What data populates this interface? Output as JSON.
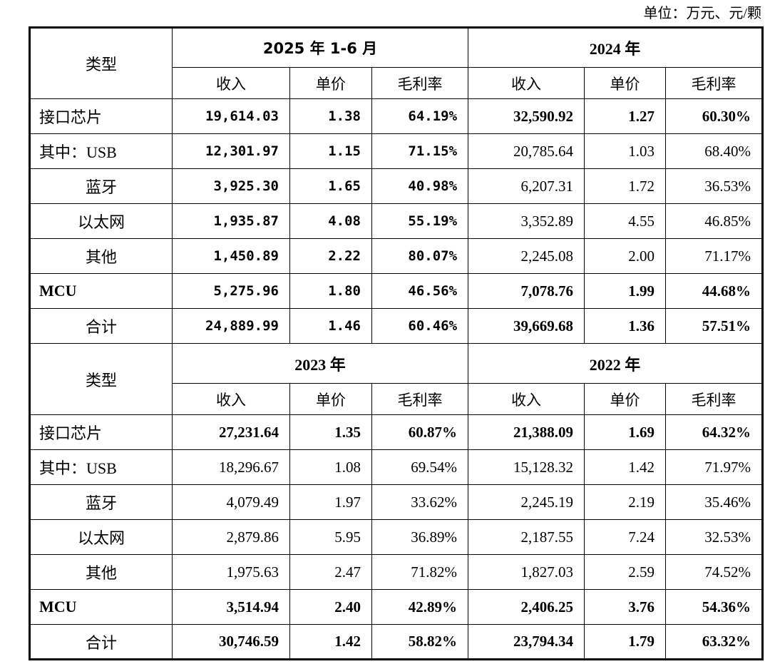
{
  "page": {
    "unit_note": "单位：万元、元/颗"
  },
  "table": {
    "type_header": "类型",
    "sub_headers": [
      "收入",
      "单价",
      "毛利率"
    ],
    "sections": [
      {
        "periods": [
          "2025 年 1-6 月",
          "2024 年"
        ],
        "rows": [
          {
            "label": "接口芯片",
            "indent": "left",
            "bold": true,
            "label_bold": false,
            "cells": [
              [
                "19,614.03",
                "1.38",
                "64.19%"
              ],
              [
                "32,590.92",
                "1.27",
                "60.30%"
              ]
            ]
          },
          {
            "label": "其中：USB",
            "indent": "left",
            "bold": false,
            "label_bold": false,
            "cells": [
              [
                "12,301.97",
                "1.15",
                "71.15%"
              ],
              [
                "20,785.64",
                "1.03",
                "68.40%"
              ]
            ]
          },
          {
            "label": "蓝牙",
            "indent": "center",
            "bold": false,
            "label_bold": false,
            "cells": [
              [
                "3,925.30",
                "1.65",
                "40.98%"
              ],
              [
                "6,207.31",
                "1.72",
                "36.53%"
              ]
            ]
          },
          {
            "label": "以太网",
            "indent": "center",
            "bold": false,
            "label_bold": false,
            "cells": [
              [
                "1,935.87",
                "4.08",
                "55.19%"
              ],
              [
                "3,352.89",
                "4.55",
                "46.85%"
              ]
            ]
          },
          {
            "label": "其他",
            "indent": "center",
            "bold": false,
            "label_bold": false,
            "cells": [
              [
                "1,450.89",
                "2.22",
                "80.07%"
              ],
              [
                "2,245.08",
                "2.00",
                "71.17%"
              ]
            ]
          },
          {
            "label": "MCU",
            "indent": "left",
            "bold": true,
            "label_bold": true,
            "cells": [
              [
                "5,275.96",
                "1.80",
                "46.56%"
              ],
              [
                "7,078.76",
                "1.99",
                "44.68%"
              ]
            ]
          },
          {
            "label": "合计",
            "indent": "center",
            "bold": true,
            "label_bold": false,
            "cells": [
              [
                "24,889.99",
                "1.46",
                "60.46%"
              ],
              [
                "39,669.68",
                "1.36",
                "57.51%"
              ]
            ]
          }
        ]
      },
      {
        "periods": [
          "2023 年",
          "2022 年"
        ],
        "rows": [
          {
            "label": "接口芯片",
            "indent": "left",
            "bold": true,
            "label_bold": false,
            "cells": [
              [
                "27,231.64",
                "1.35",
                "60.87%"
              ],
              [
                "21,388.09",
                "1.69",
                "64.32%"
              ]
            ]
          },
          {
            "label": "其中：USB",
            "indent": "left",
            "bold": false,
            "label_bold": false,
            "cells": [
              [
                "18,296.67",
                "1.08",
                "69.54%"
              ],
              [
                "15,128.32",
                "1.42",
                "71.97%"
              ]
            ]
          },
          {
            "label": "蓝牙",
            "indent": "center",
            "bold": false,
            "label_bold": false,
            "cells": [
              [
                "4,079.49",
                "1.97",
                "33.62%"
              ],
              [
                "2,245.19",
                "2.19",
                "35.46%"
              ]
            ]
          },
          {
            "label": "以太网",
            "indent": "center",
            "bold": false,
            "label_bold": false,
            "cells": [
              [
                "2,879.86",
                "5.95",
                "36.89%"
              ],
              [
                "2,187.55",
                "7.24",
                "32.53%"
              ]
            ]
          },
          {
            "label": "其他",
            "indent": "center",
            "bold": false,
            "label_bold": false,
            "cells": [
              [
                "1,975.63",
                "2.47",
                "71.82%"
              ],
              [
                "1,827.03",
                "2.59",
                "74.52%"
              ]
            ]
          },
          {
            "label": "MCU",
            "indent": "left",
            "bold": true,
            "label_bold": true,
            "cells": [
              [
                "3,514.94",
                "2.40",
                "42.89%"
              ],
              [
                "2,406.25",
                "3.76",
                "54.36%"
              ]
            ]
          },
          {
            "label": "合计",
            "indent": "center",
            "bold": true,
            "label_bold": false,
            "cells": [
              [
                "30,746.59",
                "1.42",
                "58.82%"
              ],
              [
                "23,794.34",
                "1.79",
                "63.32%"
              ]
            ]
          }
        ]
      }
    ]
  }
}
